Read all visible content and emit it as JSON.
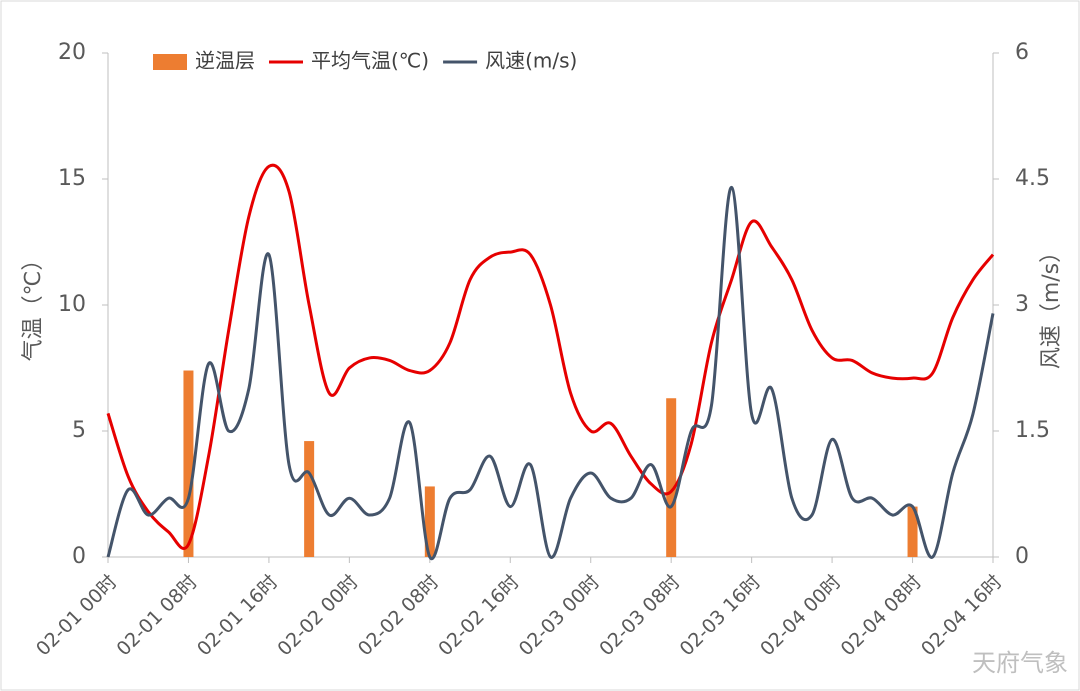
{
  "chart_data": {
    "type": "bar-line",
    "y_label": "气温（℃）",
    "y2_label": "风速（m/s）",
    "watermark": "天府气象",
    "categories": [
      "02-01 00时",
      null,
      null,
      null,
      "02-01 08时",
      null,
      null,
      null,
      "02-01 16时",
      null,
      null,
      null,
      "02-02 00时",
      null,
      null,
      null,
      "02-02 08时",
      null,
      null,
      null,
      "02-02 16时",
      null,
      null,
      null,
      "02-03 00时",
      null,
      null,
      null,
      "02-03 08时",
      null,
      null,
      null,
      "02-03 16时",
      null,
      null,
      null,
      "02-04 00时",
      null,
      null,
      null,
      "02-04 08时",
      null,
      null,
      null,
      "02-04 16时"
    ],
    "series": [
      {
        "name": "逆温层",
        "type": "bar",
        "color": "#ed7d31",
        "axis": "y",
        "values": [
          null,
          null,
          null,
          null,
          7.4,
          null,
          null,
          null,
          null,
          null,
          4.6,
          null,
          null,
          null,
          null,
          null,
          2.8,
          null,
          null,
          null,
          null,
          null,
          null,
          null,
          null,
          null,
          null,
          null,
          6.3,
          null,
          null,
          null,
          null,
          null,
          null,
          null,
          null,
          null,
          null,
          null,
          2.0,
          null,
          null,
          null,
          null
        ]
      },
      {
        "name": "平均气温(℃)",
        "type": "line",
        "color": "#e60000",
        "axis": "y",
        "values": [
          5.7,
          3.2,
          1.8,
          1.0,
          0.5,
          4.0,
          9.0,
          13.5,
          15.5,
          14.5,
          10.0,
          6.5,
          7.5,
          7.9,
          7.8,
          7.4,
          7.4,
          8.5,
          11.0,
          11.9,
          12.1,
          12.0,
          10.0,
          6.5,
          5.0,
          5.3,
          4.0,
          2.9,
          2.6,
          4.5,
          8.5,
          11.0,
          13.3,
          12.3,
          11.0,
          9.0,
          7.9,
          7.8,
          7.3,
          7.1,
          7.1,
          7.3,
          9.5,
          11.0,
          12.0
        ]
      },
      {
        "name": "风速(m/s)",
        "type": "line",
        "color": "#44546a",
        "axis": "y2",
        "values": [
          0,
          0.8,
          0.5,
          0.7,
          0.7,
          2.3,
          1.5,
          2.0,
          3.6,
          1.1,
          1.0,
          0.5,
          0.7,
          0.5,
          0.7,
          1.6,
          0,
          0.7,
          0.8,
          1.2,
          0.6,
          1.1,
          0,
          0.7,
          1.0,
          0.7,
          0.7,
          1.1,
          0.6,
          1.5,
          1.8,
          4.4,
          1.7,
          2.0,
          0.7,
          0.5,
          1.4,
          0.7,
          0.7,
          0.5,
          0.6,
          0,
          1.0,
          1.7,
          2.9
        ]
      }
    ],
    "ylim": [
      0,
      20
    ],
    "yticks": [
      0,
      5,
      10,
      15,
      20
    ],
    "y2lim": [
      0,
      6
    ],
    "y2ticks": [
      0,
      1.5,
      3,
      4.5,
      6
    ],
    "grid": false,
    "legend": "top"
  }
}
